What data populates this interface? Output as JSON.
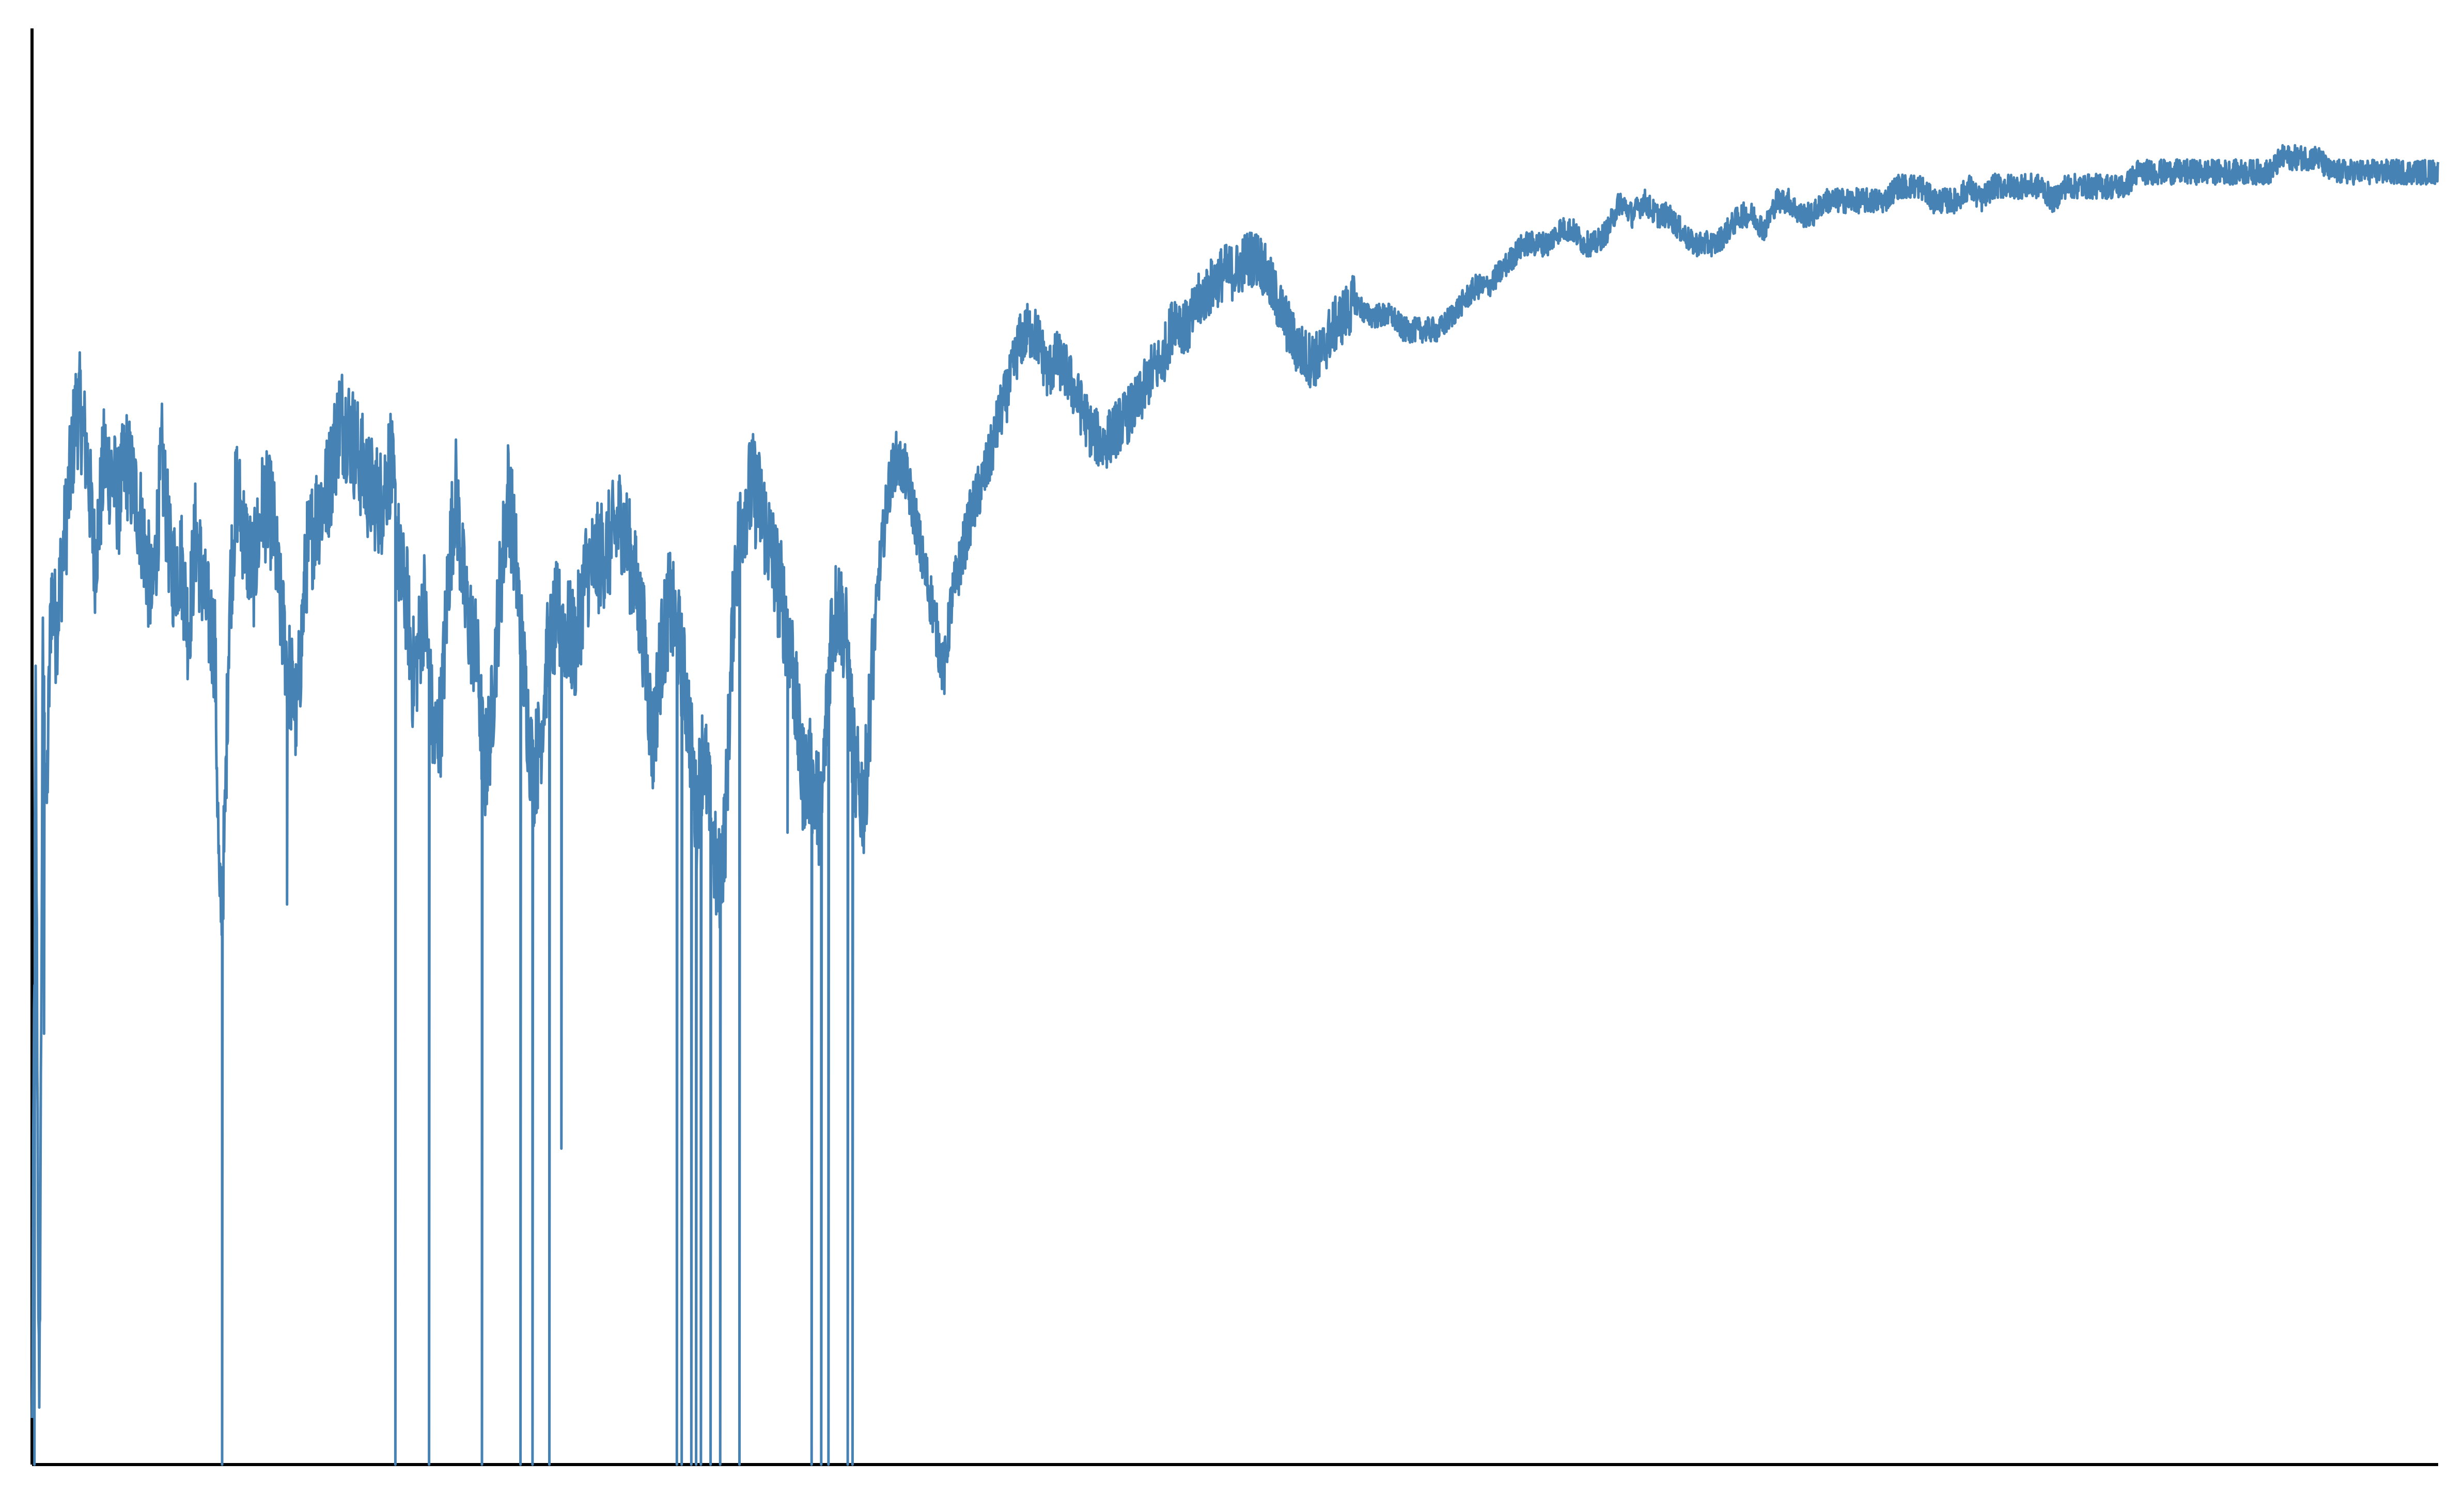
{
  "chart_data": {
    "type": "line",
    "title": "",
    "xlabel": "",
    "ylabel": "",
    "xlim": [
      0,
      100
    ],
    "ylim": [
      0,
      100
    ],
    "grid": false,
    "legend": "none",
    "series": [
      {
        "color": "#4682b4",
        "anchors": [
          [
            0.0,
            2
          ],
          [
            0.15,
            53
          ],
          [
            0.3,
            1
          ],
          [
            0.45,
            56
          ],
          [
            0.6,
            45
          ],
          [
            0.8,
            61
          ],
          [
            1.0,
            58
          ],
          [
            1.2,
            62
          ],
          [
            1.5,
            67
          ],
          [
            1.8,
            73
          ],
          [
            2.0,
            73.5
          ],
          [
            2.3,
            70
          ],
          [
            2.6,
            63
          ],
          [
            2.8,
            66
          ],
          [
            3.0,
            70
          ],
          [
            3.3,
            69
          ],
          [
            3.6,
            67
          ],
          [
            3.9,
            70
          ],
          [
            4.2,
            68
          ],
          [
            4.5,
            66
          ],
          [
            5.0,
            60
          ],
          [
            5.4,
            70
          ],
          [
            5.8,
            62
          ],
          [
            6.2,
            63
          ],
          [
            6.5,
            58
          ],
          [
            6.8,
            65
          ],
          [
            7.2,
            60
          ],
          [
            7.6,
            57
          ],
          [
            7.8,
            38
          ],
          [
            8.0,
            43
          ],
          [
            8.2,
            60
          ],
          [
            8.5,
            68
          ],
          [
            8.9,
            64
          ],
          [
            9.2,
            62
          ],
          [
            9.6,
            67
          ],
          [
            10.0,
            66
          ],
          [
            10.3,
            60
          ],
          [
            10.6,
            56
          ],
          [
            11.0,
            52
          ],
          [
            11.4,
            63
          ],
          [
            11.8,
            66
          ],
          [
            12.3,
            68
          ],
          [
            12.8,
            73
          ],
          [
            13.2,
            72
          ],
          [
            13.6,
            70
          ],
          [
            14.0,
            68
          ],
          [
            14.5,
            67
          ],
          [
            14.9,
            70
          ],
          [
            15.3,
            62
          ],
          [
            15.6,
            60
          ],
          [
            15.8,
            55
          ],
          [
            16.0,
            56
          ],
          [
            16.3,
            60
          ],
          [
            16.7,
            50
          ],
          [
            17.0,
            52
          ],
          [
            17.3,
            62
          ],
          [
            17.6,
            68
          ],
          [
            18.0,
            60
          ],
          [
            18.5,
            56
          ],
          [
            18.8,
            48
          ],
          [
            19.1,
            52
          ],
          [
            19.4,
            60
          ],
          [
            19.8,
            68
          ],
          [
            20.1,
            63
          ],
          [
            20.4,
            56
          ],
          [
            20.8,
            48
          ],
          [
            21.1,
            50
          ],
          [
            21.4,
            56
          ],
          [
            21.8,
            59
          ],
          [
            22.2,
            58
          ],
          [
            22.6,
            57
          ],
          [
            23.0,
            62
          ],
          [
            23.5,
            63
          ],
          [
            24.0,
            64
          ],
          [
            24.5,
            66
          ],
          [
            25.0,
            62
          ],
          [
            25.4,
            58
          ],
          [
            25.8,
            50
          ],
          [
            26.1,
            56
          ],
          [
            26.5,
            60
          ],
          [
            26.9,
            57
          ],
          [
            27.3,
            52
          ],
          [
            27.6,
            45
          ],
          [
            27.9,
            50
          ],
          [
            28.2,
            45
          ],
          [
            28.5,
            40
          ],
          [
            28.8,
            44
          ],
          [
            29.2,
            62
          ],
          [
            29.6,
            67
          ],
          [
            30.0,
            68
          ],
          [
            30.4,
            66
          ],
          [
            30.8,
            63
          ],
          [
            31.2,
            60
          ],
          [
            31.6,
            56
          ],
          [
            32.0,
            48
          ],
          [
            32.4,
            48
          ],
          [
            32.8,
            45
          ],
          [
            33.2,
            58
          ],
          [
            33.5,
            60
          ],
          [
            33.8,
            58
          ],
          [
            34.2,
            48
          ],
          [
            34.6,
            46
          ],
          [
            34.9,
            55
          ],
          [
            35.2,
            62
          ],
          [
            35.6,
            68
          ],
          [
            35.9,
            70
          ],
          [
            36.3,
            69
          ],
          [
            36.7,
            66
          ],
          [
            37.0,
            63
          ],
          [
            37.4,
            60
          ],
          [
            37.7,
            57
          ],
          [
            37.9,
            55
          ],
          [
            38.2,
            60
          ],
          [
            38.6,
            63
          ],
          [
            39.0,
            66
          ],
          [
            39.4,
            68
          ],
          [
            39.8,
            70
          ],
          [
            40.2,
            73
          ],
          [
            40.6,
            75
          ],
          [
            41.0,
            78
          ],
          [
            41.4,
            79
          ],
          [
            41.8,
            78.5
          ],
          [
            42.2,
            76
          ],
          [
            42.6,
            77
          ],
          [
            43.0,
            76
          ],
          [
            43.5,
            74
          ],
          [
            44.0,
            72
          ],
          [
            44.5,
            71
          ],
          [
            45.0,
            72
          ],
          [
            45.5,
            73
          ],
          [
            46.0,
            74
          ],
          [
            46.5,
            76
          ],
          [
            47.0,
            77
          ],
          [
            47.5,
            80
          ],
          [
            48.0,
            79
          ],
          [
            48.5,
            81
          ],
          [
            49.0,
            82
          ],
          [
            49.5,
            83
          ],
          [
            50.0,
            83
          ],
          [
            50.5,
            84
          ],
          [
            51.0,
            84
          ],
          [
            51.5,
            82
          ],
          [
            52.0,
            80
          ],
          [
            52.5,
            78
          ],
          [
            53.0,
            77
          ],
          [
            53.5,
            77
          ],
          [
            54.0,
            79
          ],
          [
            54.5,
            80
          ],
          [
            55.0,
            81
          ],
          [
            55.5,
            80
          ],
          [
            56.0,
            80
          ],
          [
            56.5,
            80
          ],
          [
            57.0,
            79
          ],
          [
            57.5,
            79
          ],
          [
            58.0,
            79
          ],
          [
            58.5,
            79
          ],
          [
            59.0,
            80
          ],
          [
            59.5,
            81
          ],
          [
            60.0,
            82
          ],
          [
            60.5,
            82
          ],
          [
            61.0,
            83
          ],
          [
            61.5,
            84
          ],
          [
            62.0,
            85
          ],
          [
            62.5,
            85
          ],
          [
            63.0,
            85
          ],
          [
            63.5,
            86
          ],
          [
            64.0,
            86
          ],
          [
            64.5,
            85
          ],
          [
            65.0,
            85
          ],
          [
            65.5,
            86
          ],
          [
            66.0,
            88
          ],
          [
            66.5,
            87
          ],
          [
            67.0,
            88
          ],
          [
            67.5,
            87
          ],
          [
            68.0,
            87
          ],
          [
            68.5,
            86
          ],
          [
            69.0,
            85
          ],
          [
            69.5,
            85
          ],
          [
            70.0,
            85
          ],
          [
            70.5,
            86
          ],
          [
            71.0,
            87
          ],
          [
            71.5,
            87
          ],
          [
            72.0,
            86
          ],
          [
            72.5,
            88
          ],
          [
            73.0,
            88
          ],
          [
            73.5,
            87
          ],
          [
            74.0,
            87
          ],
          [
            74.5,
            88
          ],
          [
            75.0,
            88
          ],
          [
            75.5,
            88
          ],
          [
            76.0,
            88
          ],
          [
            76.5,
            88
          ],
          [
            77.0,
            88
          ],
          [
            77.5,
            89
          ],
          [
            78.0,
            89
          ],
          [
            78.5,
            89
          ],
          [
            79.0,
            88
          ],
          [
            79.5,
            88
          ],
          [
            80.0,
            88
          ],
          [
            80.5,
            89
          ],
          [
            81.0,
            88
          ],
          [
            81.5,
            89
          ],
          [
            82.0,
            89
          ],
          [
            82.5,
            89
          ],
          [
            83.0,
            89
          ],
          [
            83.5,
            89
          ],
          [
            84.0,
            88
          ],
          [
            84.5,
            89
          ],
          [
            85.0,
            89
          ],
          [
            85.5,
            89
          ],
          [
            86.0,
            89
          ],
          [
            86.5,
            89
          ],
          [
            87.0,
            89
          ],
          [
            87.5,
            90
          ],
          [
            88.0,
            90
          ],
          [
            88.5,
            90
          ],
          [
            89.0,
            90
          ],
          [
            89.5,
            90
          ],
          [
            90.0,
            90
          ],
          [
            90.5,
            90
          ],
          [
            91.0,
            90
          ],
          [
            91.5,
            90
          ],
          [
            92.0,
            90
          ],
          [
            92.5,
            90
          ],
          [
            93.0,
            90
          ],
          [
            93.5,
            91
          ],
          [
            94.0,
            91
          ],
          [
            94.5,
            91
          ],
          [
            95.0,
            91
          ],
          [
            95.5,
            90
          ],
          [
            96.0,
            90
          ],
          [
            96.5,
            90
          ],
          [
            97.0,
            90
          ],
          [
            97.5,
            90
          ],
          [
            98.0,
            90
          ],
          [
            98.5,
            90
          ],
          [
            99.0,
            90
          ],
          [
            99.5,
            90
          ],
          [
            100.0,
            90
          ]
        ],
        "drops": [
          [
            0.1,
            0
          ],
          [
            0.5,
            30
          ],
          [
            7.9,
            0
          ],
          [
            10.6,
            39
          ],
          [
            15.1,
            0
          ],
          [
            16.5,
            0
          ],
          [
            18.7,
            0
          ],
          [
            20.3,
            0
          ],
          [
            20.8,
            0
          ],
          [
            21.5,
            0
          ],
          [
            22.0,
            22
          ],
          [
            26.8,
            0
          ],
          [
            27.0,
            0
          ],
          [
            27.4,
            0
          ],
          [
            27.6,
            0
          ],
          [
            27.8,
            0
          ],
          [
            28.2,
            0
          ],
          [
            28.6,
            0
          ],
          [
            29.4,
            0
          ],
          [
            31.4,
            44
          ],
          [
            32.4,
            0
          ],
          [
            32.8,
            0
          ],
          [
            33.1,
            0
          ],
          [
            33.9,
            0
          ],
          [
            34.1,
            0
          ]
        ],
        "jitter_noise": 2.5
      }
    ]
  }
}
